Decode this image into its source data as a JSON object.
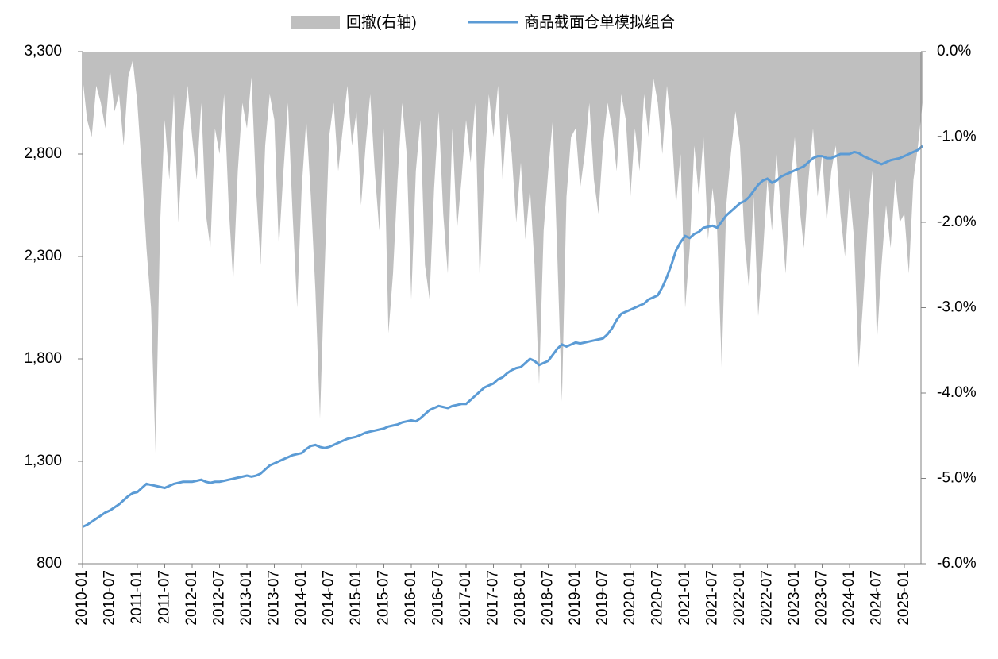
{
  "chart_data": {
    "type": "line",
    "x": [
      "2010-01",
      "2010-02",
      "2010-03",
      "2010-04",
      "2010-05",
      "2010-06",
      "2010-07",
      "2010-08",
      "2010-09",
      "2010-10",
      "2010-11",
      "2010-12",
      "2011-01",
      "2011-02",
      "2011-03",
      "2011-04",
      "2011-05",
      "2011-06",
      "2011-07",
      "2011-08",
      "2011-09",
      "2011-10",
      "2011-11",
      "2011-12",
      "2012-01",
      "2012-02",
      "2012-03",
      "2012-04",
      "2012-05",
      "2012-06",
      "2012-07",
      "2012-08",
      "2012-09",
      "2012-10",
      "2012-11",
      "2012-12",
      "2013-01",
      "2013-02",
      "2013-03",
      "2013-04",
      "2013-05",
      "2013-06",
      "2013-07",
      "2013-08",
      "2013-09",
      "2013-10",
      "2013-11",
      "2013-12",
      "2014-01",
      "2014-02",
      "2014-03",
      "2014-04",
      "2014-05",
      "2014-06",
      "2014-07",
      "2014-08",
      "2014-09",
      "2014-10",
      "2014-11",
      "2014-12",
      "2015-01",
      "2015-02",
      "2015-03",
      "2015-04",
      "2015-05",
      "2015-06",
      "2015-07",
      "2015-08",
      "2015-09",
      "2015-10",
      "2015-11",
      "2015-12",
      "2016-01",
      "2016-02",
      "2016-03",
      "2016-04",
      "2016-05",
      "2016-06",
      "2016-07",
      "2016-08",
      "2016-09",
      "2016-10",
      "2016-11",
      "2016-12",
      "2017-01",
      "2017-02",
      "2017-03",
      "2017-04",
      "2017-05",
      "2017-06",
      "2017-07",
      "2017-08",
      "2017-09",
      "2017-10",
      "2017-11",
      "2017-12",
      "2018-01",
      "2018-02",
      "2018-03",
      "2018-04",
      "2018-05",
      "2018-06",
      "2018-07",
      "2018-08",
      "2018-09",
      "2018-10",
      "2018-11",
      "2018-12",
      "2019-01",
      "2019-02",
      "2019-03",
      "2019-04",
      "2019-05",
      "2019-06",
      "2019-07",
      "2019-08",
      "2019-09",
      "2019-10",
      "2019-11",
      "2019-12",
      "2020-01",
      "2020-02",
      "2020-03",
      "2020-04",
      "2020-05",
      "2020-06",
      "2020-07",
      "2020-08",
      "2020-09",
      "2020-10",
      "2020-11",
      "2020-12",
      "2021-01",
      "2021-02",
      "2021-03",
      "2021-04",
      "2021-05",
      "2021-06",
      "2021-07",
      "2021-08",
      "2021-09",
      "2021-10",
      "2021-11",
      "2021-12",
      "2022-01",
      "2022-02",
      "2022-03",
      "2022-04",
      "2022-05",
      "2022-06",
      "2022-07",
      "2022-08",
      "2022-09",
      "2022-10",
      "2022-11",
      "2022-12",
      "2023-01",
      "2023-02",
      "2023-03",
      "2023-04",
      "2023-05",
      "2023-06",
      "2023-07",
      "2023-08",
      "2023-09",
      "2023-10",
      "2023-11",
      "2023-12",
      "2024-01",
      "2024-02",
      "2024-03",
      "2024-04",
      "2024-05",
      "2024-06",
      "2024-07",
      "2024-08",
      "2024-09",
      "2024-10",
      "2024-11",
      "2024-12",
      "2025-01",
      "2025-02",
      "2025-03",
      "2025-04",
      "2025-05"
    ],
    "xticks": [
      "2010-01",
      "2010-07",
      "2011-01",
      "2011-07",
      "2012-01",
      "2012-07",
      "2013-01",
      "2013-07",
      "2014-01",
      "2014-07",
      "2015-01",
      "2015-07",
      "2016-01",
      "2016-07",
      "2017-01",
      "2017-07",
      "2018-01",
      "2018-07",
      "2019-01",
      "2019-07",
      "2020-01",
      "2020-07",
      "2021-01",
      "2021-07",
      "2022-01",
      "2022-07",
      "2023-01",
      "2023-07",
      "2024-01",
      "2024-07",
      "2025-01"
    ],
    "ylim": [
      800,
      3300
    ],
    "yticks": [
      800,
      {
        "value": 1300,
        "label": "1,300"
      },
      {
        "value": 1800,
        "label": "1,800"
      },
      {
        "value": 2300,
        "label": "2,300"
      },
      {
        "value": 2800,
        "label": "2,800"
      },
      {
        "value": 3300,
        "label": "3,300"
      }
    ],
    "y2lim": [
      -6,
      0
    ],
    "y2ticks": [
      {
        "value": 0,
        "label": "0.0%"
      },
      {
        "value": -1,
        "label": "-1.0%"
      },
      {
        "value": -2,
        "label": "-2.0%"
      },
      {
        "value": -3,
        "label": "-3.0%"
      },
      {
        "value": -4,
        "label": "-4.0%"
      },
      {
        "value": -5,
        "label": "-5.0%"
      },
      {
        "value": -6,
        "label": "-6.0%"
      }
    ],
    "legend": "top",
    "series": [
      {
        "name": "回撤(右轴)",
        "type": "area",
        "axis": "y2",
        "color": "#bfbfbf",
        "values": [
          -0.3,
          -0.8,
          -1.0,
          -0.4,
          -0.6,
          -0.9,
          -0.2,
          -0.7,
          -0.5,
          -1.1,
          -0.3,
          -0.1,
          -0.6,
          -1.4,
          -2.3,
          -3.0,
          -4.7,
          -2.0,
          -0.8,
          -1.5,
          -0.5,
          -2.0,
          -1.0,
          -0.4,
          -1.0,
          -1.5,
          -0.6,
          -1.9,
          -2.3,
          -0.9,
          -1.2,
          -0.5,
          -1.8,
          -2.7,
          -1.4,
          -0.6,
          -0.9,
          -0.3,
          -1.6,
          -2.5,
          -1.1,
          -0.5,
          -0.8,
          -2.3,
          -1.4,
          -0.6,
          -1.9,
          -3.0,
          -1.6,
          -0.8,
          -1.7,
          -2.8,
          -4.3,
          -2.6,
          -1.0,
          -0.6,
          -1.4,
          -0.9,
          -0.4,
          -1.1,
          -0.7,
          -1.8,
          -1.1,
          -0.5,
          -1.4,
          -2.1,
          -0.9,
          -3.3,
          -2.6,
          -1.5,
          -0.6,
          -1.2,
          -2.9,
          -1.4,
          -0.8,
          -2.5,
          -2.9,
          -1.6,
          -0.7,
          -1.9,
          -2.6,
          -0.9,
          -2.1,
          -1.5,
          -0.8,
          -1.3,
          -0.6,
          -2.7,
          -1.4,
          -0.5,
          -1.0,
          -0.4,
          -1.5,
          -0.7,
          -1.2,
          -2.0,
          -1.3,
          -2.2,
          -1.6,
          -2.5,
          -3.9,
          -2.1,
          -1.4,
          -0.8,
          -2.4,
          -4.1,
          -1.7,
          -1.0,
          -0.9,
          -1.6,
          -1.2,
          -0.6,
          -1.5,
          -1.9,
          -1.1,
          -0.6,
          -0.9,
          -1.4,
          -0.5,
          -0.8,
          -1.7,
          -0.9,
          -1.4,
          -0.5,
          -1.0,
          -0.3,
          -0.6,
          -1.2,
          -0.4,
          -0.9,
          -1.8,
          -1.2,
          -3.0,
          -2.3,
          -1.1,
          -1.7,
          -1.0,
          -2.2,
          -1.6,
          -2.1,
          -3.7,
          -1.8,
          -1.2,
          -0.7,
          -1.1,
          -2.2,
          -2.8,
          -1.7,
          -3.1,
          -2.4,
          -1.5,
          -2.1,
          -1.2,
          -1.9,
          -2.6,
          -1.6,
          -1.0,
          -1.8,
          -2.3,
          -1.5,
          -0.9,
          -1.7,
          -1.2,
          -2.0,
          -1.4,
          -1.1,
          -1.9,
          -2.4,
          -1.6,
          -2.2,
          -3.7,
          -2.9,
          -2.0,
          -1.4,
          -3.4,
          -2.5,
          -1.8,
          -2.3,
          -1.5,
          -2.0,
          -1.9,
          -2.6,
          -1.5,
          -1.1,
          -0.6
        ]
      },
      {
        "name": "商品截面仓单模拟组合",
        "type": "line",
        "axis": "y",
        "color": "#5b9bd5",
        "values": [
          980,
          990,
          1005,
          1020,
          1035,
          1050,
          1060,
          1075,
          1090,
          1110,
          1130,
          1145,
          1150,
          1170,
          1190,
          1185,
          1180,
          1175,
          1170,
          1180,
          1190,
          1195,
          1200,
          1200,
          1200,
          1205,
          1210,
          1200,
          1195,
          1200,
          1200,
          1205,
          1210,
          1215,
          1220,
          1225,
          1230,
          1225,
          1230,
          1240,
          1260,
          1280,
          1290,
          1300,
          1310,
          1320,
          1330,
          1335,
          1340,
          1360,
          1375,
          1380,
          1370,
          1365,
          1370,
          1380,
          1390,
          1400,
          1410,
          1415,
          1420,
          1430,
          1440,
          1445,
          1450,
          1455,
          1460,
          1470,
          1475,
          1480,
          1490,
          1495,
          1500,
          1495,
          1510,
          1530,
          1550,
          1560,
          1570,
          1565,
          1560,
          1570,
          1575,
          1580,
          1580,
          1600,
          1620,
          1640,
          1660,
          1670,
          1680,
          1700,
          1710,
          1730,
          1745,
          1755,
          1760,
          1780,
          1800,
          1790,
          1770,
          1780,
          1790,
          1820,
          1850,
          1870,
          1860,
          1870,
          1880,
          1875,
          1880,
          1885,
          1890,
          1895,
          1900,
          1920,
          1950,
          1990,
          2020,
          2030,
          2040,
          2050,
          2060,
          2070,
          2090,
          2100,
          2110,
          2150,
          2200,
          2260,
          2330,
          2370,
          2400,
          2390,
          2410,
          2420,
          2440,
          2445,
          2450,
          2440,
          2470,
          2500,
          2520,
          2540,
          2560,
          2570,
          2590,
          2620,
          2650,
          2670,
          2680,
          2660,
          2670,
          2690,
          2700,
          2710,
          2720,
          2730,
          2740,
          2760,
          2780,
          2790,
          2790,
          2780,
          2780,
          2790,
          2800,
          2800,
          2800,
          2810,
          2805,
          2790,
          2780,
          2770,
          2760,
          2750,
          2760,
          2770,
          2775,
          2780,
          2790,
          2800,
          2810,
          2820,
          2840
        ]
      }
    ]
  }
}
